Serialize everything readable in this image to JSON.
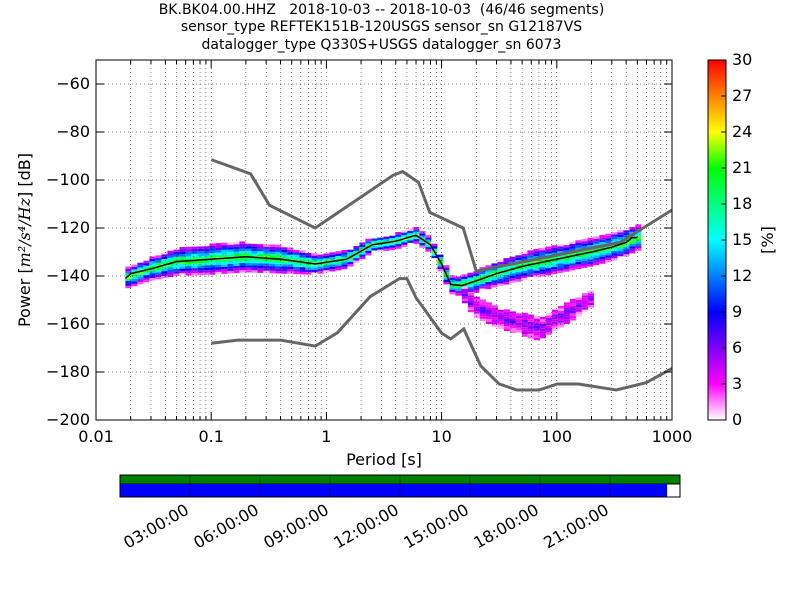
{
  "title_lines": [
    "BK.BK04.00.HHZ   2018-10-03 -- 2018-10-03  (46/46 segments)",
    "sensor_type REFTEK151B-120USGS sensor_sn G12187VS",
    "datalogger_type Q330S+USGS datalogger_sn 6073"
  ],
  "chart_data": {
    "type": "heatmap",
    "xlabel": "Period [s]",
    "ylabel": "Power [m^2/s^4/Hz] [dB]",
    "ylabel_parts": {
      "prefix": "Power [",
      "unit": "m²/s⁴/Hz",
      "suffix": "] [dB]"
    },
    "xscale": "log",
    "xlim": [
      0.01,
      1000
    ],
    "ylim": [
      -200,
      -50
    ],
    "xticks": [
      0.01,
      0.1,
      1,
      10,
      100,
      1000
    ],
    "xtick_labels": [
      "0.01",
      "0.1",
      "1",
      "10",
      "100",
      "1000"
    ],
    "yticks": [
      -200,
      -180,
      -160,
      -140,
      -120,
      -100,
      -80,
      -60
    ],
    "ytick_labels": [
      "−200",
      "−180",
      "−160",
      "−140",
      "−120",
      "−100",
      "−80",
      "−60"
    ],
    "colorbar": {
      "label": "[%]",
      "range": [
        0,
        30
      ],
      "ticks": [
        0,
        3,
        6,
        9,
        12,
        15,
        18,
        21,
        24,
        27,
        30
      ],
      "tick_labels": [
        "0",
        "3",
        "6",
        "9",
        "12",
        "15",
        "18",
        "21",
        "24",
        "27",
        "30"
      ],
      "colormap": [
        "#ffffff",
        "#ff00ff",
        "#8000ff",
        "#0000ff",
        "#0080ff",
        "#00ffff",
        "#00ff80",
        "#00ff00",
        "#ffff00",
        "#ff8000",
        "#ff0000"
      ]
    },
    "nhnm": {
      "name": "New High Noise Model",
      "period": [
        0.1,
        0.22,
        0.32,
        0.8,
        3.8,
        4.6,
        6.3,
        7.9,
        15.4,
        20,
        354.8,
        1000
      ],
      "power": [
        -91.5,
        -97.4,
        -110.5,
        -120,
        -98,
        -96.5,
        -101,
        -113.5,
        -120,
        -138,
        -126,
        -112.5
      ]
    },
    "nlnm": {
      "name": "New Low Noise Model",
      "period": [
        0.1,
        0.17,
        0.4,
        0.8,
        1.24,
        2.4,
        4.3,
        5,
        6,
        10,
        12,
        15.6,
        21.9,
        31.6,
        45,
        70,
        101,
        154,
        328,
        600,
        1000
      ],
      "power": [
        -168,
        -166.7,
        -166.7,
        -169.2,
        -163.7,
        -148.6,
        -141.1,
        -141.1,
        -149,
        -163.8,
        -166.2,
        -162.1,
        -177.5,
        -185,
        -187.5,
        -187.5,
        -185,
        -185,
        -187.5,
        -184.4,
        -178.5
      ]
    },
    "mode": {
      "period": [
        0.018,
        0.02,
        0.03,
        0.05,
        0.1,
        0.2,
        0.4,
        0.8,
        1.5,
        2.5,
        4,
        6,
        8,
        10,
        12,
        15,
        20,
        30,
        50,
        100,
        200,
        300,
        400,
        450,
        500
      ],
      "power": [
        -141,
        -139,
        -137,
        -134,
        -133,
        -132,
        -133,
        -135,
        -133,
        -127,
        -125.5,
        -123,
        -127,
        -135,
        -143.5,
        -144,
        -142,
        -139,
        -136,
        -133,
        -130,
        -128,
        -126,
        -124,
        -124
      ]
    },
    "bands": [
      {
        "name": "main",
        "period": [
          0.018,
          0.03,
          0.05,
          0.1,
          0.2,
          0.4,
          0.8,
          1.5,
          2.5,
          4,
          6,
          8,
          10,
          12,
          15,
          20,
          30,
          50,
          100,
          200,
          300,
          400,
          500
        ],
        "center": [
          -141,
          -137,
          -134,
          -133,
          -132,
          -133,
          -135,
          -133,
          -127,
          -125.5,
          -123,
          -127,
          -135,
          -143.5,
          -144,
          -142,
          -139,
          -136,
          -133,
          -130,
          -128,
          -126,
          -124
        ],
        "halfwidth": [
          2.5,
          3,
          4,
          4.5,
          4.5,
          4,
          2.5,
          2,
          1.5,
          1.5,
          1.5,
          1.5,
          2,
          2,
          2.5,
          3,
          3.5,
          4,
          4,
          4,
          4,
          4,
          3.5
        ]
      },
      {
        "name": "low-tail",
        "period": [
          15,
          20,
          30,
          50,
          70,
          100,
          150,
          200
        ],
        "center": [
          -147,
          -153,
          -157,
          -160,
          -162,
          -158,
          -153,
          -149
        ],
        "halfwidth": [
          2,
          2.5,
          2.5,
          3,
          3,
          2.5,
          2.5,
          2
        ]
      }
    ]
  },
  "timeline": {
    "ticks": [
      "03:00:00",
      "06:00:00",
      "09:00:00",
      "12:00:00",
      "15:00:00",
      "18:00:00",
      "21:00:00"
    ],
    "tick_hours": [
      3,
      6,
      9,
      12,
      15,
      18,
      21
    ],
    "span_hours": 24,
    "coverage_fraction": 0.977,
    "data_color": "#008000",
    "psd_color": "#0000ff"
  }
}
